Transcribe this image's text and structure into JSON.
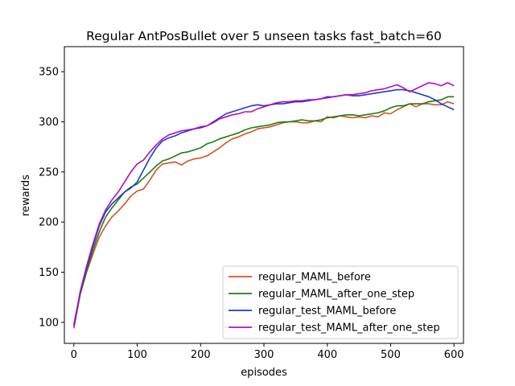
{
  "chart_data": {
    "type": "line",
    "title": "Regular AntPosBullet over 5 unseen tasks fast_batch=60",
    "xlabel": "episodes",
    "ylabel": "rewards",
    "xlim": [
      -15,
      615
    ],
    "ylim": [
      79,
      375
    ],
    "xticks": [
      0,
      100,
      200,
      300,
      400,
      500,
      600
    ],
    "yticks": [
      100,
      150,
      200,
      250,
      300,
      350
    ],
    "grid": false,
    "legend_position": "lower-right",
    "x": [
      0,
      10,
      20,
      30,
      40,
      50,
      60,
      70,
      80,
      90,
      100,
      110,
      120,
      130,
      140,
      150,
      160,
      170,
      180,
      190,
      200,
      210,
      220,
      230,
      240,
      250,
      260,
      270,
      280,
      290,
      300,
      310,
      320,
      330,
      340,
      350,
      360,
      370,
      380,
      390,
      400,
      410,
      420,
      430,
      440,
      450,
      460,
      470,
      480,
      490,
      500,
      510,
      520,
      530,
      540,
      550,
      560,
      570,
      580,
      590,
      600
    ],
    "series": [
      {
        "name": "regular_MAML_before",
        "color": "#d2541f",
        "values": [
          94,
          128,
          150,
          168,
          185,
          196,
          205,
          211,
          218,
          226,
          231,
          233,
          242,
          252,
          258,
          259,
          260,
          257,
          261,
          263,
          264,
          266,
          270,
          274,
          279,
          283,
          285,
          288,
          290,
          293,
          294,
          295,
          297,
          299,
          300,
          300,
          299,
          299,
          301,
          300,
          305,
          304,
          306,
          305,
          304,
          305,
          304,
          306,
          305,
          309,
          308,
          312,
          315,
          318,
          315,
          318,
          318,
          317,
          317,
          320,
          318
        ]
      },
      {
        "name": "regular_MAML_after_one_step",
        "color": "#1e7d12",
        "values": [
          96,
          128,
          151,
          172,
          190,
          205,
          214,
          222,
          230,
          235,
          238,
          244,
          250,
          256,
          261,
          263,
          266,
          269,
          270,
          272,
          274,
          278,
          280,
          283,
          285,
          287,
          289,
          292,
          294,
          295,
          296,
          297,
          299,
          300,
          300,
          301,
          302,
          301,
          301,
          302,
          304,
          305,
          306,
          307,
          307,
          306,
          307,
          308,
          309,
          311,
          314,
          316,
          316,
          318,
          318,
          318,
          320,
          321,
          322,
          325,
          325
        ]
      },
      {
        "name": "regular_test_MAML_before",
        "color": "#1c3cc8",
        "values": [
          98,
          130,
          154,
          176,
          196,
          210,
          218,
          224,
          230,
          234,
          240,
          252,
          264,
          274,
          281,
          284,
          286,
          289,
          291,
          293,
          294,
          296,
          300,
          304,
          308,
          310,
          312,
          314,
          316,
          317,
          316,
          317,
          318,
          318,
          319,
          320,
          320,
          321,
          322,
          323,
          324,
          325,
          326,
          327,
          326,
          326,
          327,
          328,
          329,
          330,
          331,
          332,
          332,
          331,
          329,
          327,
          325,
          322,
          318,
          315,
          312
        ]
      },
      {
        "name": "regular_test_MAML_after_one_step",
        "color": "#b10fc6",
        "values": [
          96,
          131,
          156,
          178,
          198,
          212,
          222,
          230,
          240,
          250,
          258,
          262,
          270,
          277,
          283,
          287,
          289,
          291,
          292,
          293,
          295,
          296,
          299,
          303,
          305,
          307,
          308,
          310,
          310,
          313,
          315,
          317,
          319,
          320,
          320,
          321,
          321,
          322,
          322,
          323,
          325,
          325,
          326,
          327,
          327,
          328,
          329,
          331,
          332,
          333,
          335,
          337,
          334,
          330,
          333,
          336,
          339,
          338,
          336,
          339,
          336
        ]
      }
    ]
  }
}
